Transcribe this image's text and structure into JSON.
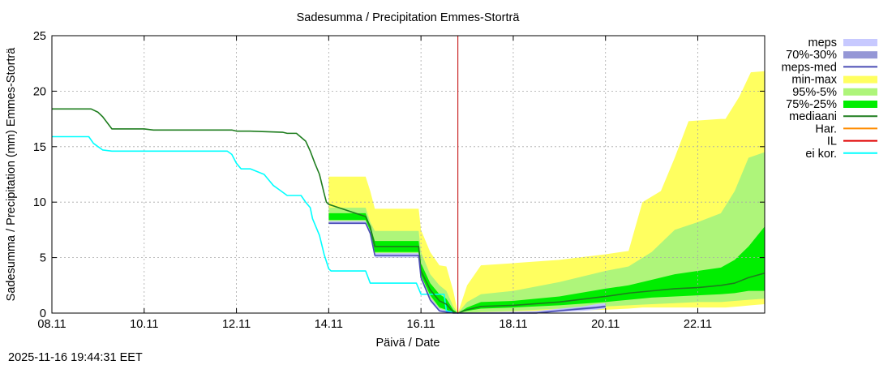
{
  "chart_data": {
    "type": "area",
    "title": "Sadesumma / Precipitation  Emmes-Storträ",
    "xlabel": "Päivä / Date",
    "ylabel": "Sadesumma / Precipitation (mm)  Emmes-Storträ",
    "timestamp": "2025-11-16 19:44:31 EET",
    "x_unit": "days since 08.11 00:00",
    "xlim": [
      0,
      15.45
    ],
    "ylim": [
      0,
      25
    ],
    "x_ticks": [
      {
        "x": 0,
        "label": "08.11"
      },
      {
        "x": 2,
        "label": "10.11"
      },
      {
        "x": 4,
        "label": "12.11"
      },
      {
        "x": 6,
        "label": "14.11"
      },
      {
        "x": 8,
        "label": "16.11"
      },
      {
        "x": 10,
        "label": "18.11"
      },
      {
        "x": 12,
        "label": "20.11"
      },
      {
        "x": 14,
        "label": "22.11"
      }
    ],
    "y_ticks": [
      0,
      5,
      10,
      15,
      20,
      25
    ],
    "grid": true,
    "now_line_x": 8.8,
    "legend": {
      "placement": "outside-right",
      "items": [
        {
          "label": "meps",
          "color": "#c7c9ff",
          "style": "band"
        },
        {
          "label": "70%-30%",
          "color": "#9597d6",
          "style": "band"
        },
        {
          "label": "meps-med",
          "color": "#4a4cb5",
          "style": "line"
        },
        {
          "label": "min-max",
          "color": "#ffff60",
          "style": "band"
        },
        {
          "label": "95%-5%",
          "color": "#aef57a",
          "style": "band"
        },
        {
          "label": "75%-25%",
          "color": "#00ee00",
          "style": "band"
        },
        {
          "label": "mediaani",
          "color": "#1e7d1e",
          "style": "line"
        },
        {
          "label": "Har.",
          "color": "#ff8c00",
          "style": "line"
        },
        {
          "label": "IL",
          "color": "#e00000",
          "style": "line"
        },
        {
          "label": "ei kor.",
          "color": "#00ffff",
          "style": "line"
        }
      ]
    },
    "series": [
      {
        "name": "min-max",
        "color": "#ffff60",
        "kind": "band",
        "segment": "past",
        "x": [
          6,
          6.8,
          6.9,
          7.0,
          7.95,
          8.0,
          8.2,
          8.4,
          8.55,
          8.7,
          8.8
        ],
        "upper": [
          12.3,
          12.3,
          11.0,
          9.4,
          9.4,
          7.5,
          5.5,
          4.3,
          4.2,
          2.0,
          0
        ],
        "lower": [
          8.0,
          8.0,
          7.0,
          5.0,
          5.0,
          3.0,
          1.0,
          0.2,
          0.1,
          0.0,
          0
        ]
      },
      {
        "name": "95%-5%",
        "color": "#aef57a",
        "kind": "band",
        "segment": "past",
        "x": [
          6,
          6.8,
          6.9,
          7.0,
          7.95,
          8.0,
          8.2,
          8.4,
          8.55,
          8.7,
          8.8
        ],
        "upper": [
          9.5,
          9.5,
          8.2,
          7.4,
          7.4,
          5.5,
          3.5,
          2.5,
          2.0,
          0.6,
          0
        ],
        "lower": [
          8.2,
          8.2,
          7.2,
          5.3,
          5.3,
          3.2,
          1.3,
          0.3,
          0.2,
          0.0,
          0
        ]
      },
      {
        "name": "75%-25%",
        "color": "#00ee00",
        "kind": "band",
        "segment": "past",
        "x": [
          6,
          6.8,
          6.9,
          7.0,
          7.95,
          8.0,
          8.2,
          8.4,
          8.55,
          8.7,
          8.8
        ],
        "upper": [
          9.0,
          9.0,
          7.8,
          6.5,
          6.5,
          4.5,
          2.7,
          1.7,
          1.3,
          0.3,
          0
        ],
        "lower": [
          8.4,
          8.4,
          7.4,
          5.5,
          5.5,
          3.4,
          1.6,
          0.5,
          0.3,
          0.0,
          0
        ]
      },
      {
        "name": "meps",
        "color": "#c7c9ff",
        "kind": "band",
        "segment": "past",
        "x": [
          6,
          6.8,
          6.9,
          7.0,
          7.95,
          8.0,
          8.2,
          8.4,
          8.55,
          8.7,
          8.8
        ],
        "upper": [
          8.3,
          8.3,
          7.4,
          5.4,
          5.4,
          3.4,
          1.4,
          0.4,
          0.2,
          0.0,
          0
        ],
        "lower": [
          8.0,
          8.0,
          7.0,
          5.0,
          5.0,
          3.0,
          1.0,
          0.1,
          0.0,
          0.0,
          0
        ]
      },
      {
        "name": "min-max",
        "color": "#ffff60",
        "kind": "band",
        "segment": "future",
        "x": [
          8.8,
          9.0,
          9.3,
          10.0,
          11.0,
          12.0,
          12.5,
          12.8,
          13.2,
          13.5,
          13.8,
          14.5,
          14.6,
          14.9,
          15.15,
          15.45
        ],
        "upper": [
          0,
          2.5,
          4.3,
          4.5,
          4.8,
          5.3,
          5.6,
          10.0,
          11.0,
          14.0,
          17.3,
          17.5,
          17.5,
          19.5,
          21.7,
          21.8
        ],
        "lower": [
          0,
          0.0,
          0.0,
          0.1,
          0.2,
          0.3,
          0.4,
          0.5,
          0.5,
          0.5,
          0.5,
          0.5,
          0.5,
          0.6,
          0.7,
          0.8
        ]
      },
      {
        "name": "95%-5%",
        "color": "#aef57a",
        "kind": "band",
        "segment": "future",
        "x": [
          8.8,
          9.0,
          9.3,
          10.0,
          11.0,
          12.0,
          12.5,
          13.0,
          13.5,
          14.0,
          14.5,
          14.8,
          15.1,
          15.45
        ],
        "upper": [
          0,
          1.0,
          1.7,
          2.0,
          2.8,
          3.8,
          4.2,
          5.5,
          7.5,
          8.2,
          9.0,
          11.0,
          14.0,
          14.5
        ],
        "lower": [
          0,
          0.0,
          0.1,
          0.2,
          0.4,
          0.6,
          0.7,
          0.8,
          0.9,
          1.0,
          1.0,
          1.1,
          1.2,
          1.3
        ]
      },
      {
        "name": "75%-25%",
        "color": "#00ee00",
        "kind": "band",
        "segment": "future",
        "x": [
          8.8,
          9.0,
          9.3,
          10.0,
          11.0,
          12.0,
          12.5,
          13.0,
          13.5,
          14.0,
          14.5,
          14.8,
          15.1,
          15.45
        ],
        "upper": [
          0,
          0.5,
          1.0,
          1.1,
          1.5,
          2.2,
          2.5,
          3.0,
          3.5,
          3.8,
          4.1,
          4.8,
          6.0,
          7.8
        ],
        "lower": [
          0,
          0.2,
          0.4,
          0.5,
          0.7,
          1.0,
          1.2,
          1.4,
          1.5,
          1.6,
          1.7,
          1.8,
          2.0,
          2.0
        ]
      },
      {
        "name": "meps",
        "color": "#c7c9ff",
        "kind": "band",
        "segment": "future",
        "x": [
          8.8,
          9.5,
          10.5,
          11.0,
          11.5,
          11.8,
          12.0
        ],
        "upper": [
          0,
          0.1,
          0.2,
          0.4,
          0.6,
          0.8,
          0.9
        ],
        "lower": [
          0,
          0.0,
          0.0,
          0.1,
          0.2,
          0.3,
          0.4
        ]
      },
      {
        "name": "70%-30%",
        "color": "#9597d6",
        "kind": "band",
        "segment": "future",
        "x": [
          8.8,
          9.5,
          10.5,
          11.0,
          11.5,
          11.8,
          12.0
        ],
        "upper": [
          0,
          0.0,
          0.1,
          0.3,
          0.5,
          0.6,
          0.7
        ],
        "lower": [
          0,
          0.0,
          0.0,
          0.2,
          0.3,
          0.4,
          0.5
        ]
      },
      {
        "name": "ei kor.",
        "color": "#00ffff",
        "kind": "line",
        "x": [
          0,
          0.8,
          0.9,
          1.0,
          1.1,
          1.3,
          2.0,
          3.0,
          3.8,
          3.9,
          4.0,
          4.1,
          4.3,
          4.6,
          4.7,
          4.8,
          4.9,
          5.1,
          5.15,
          5.4,
          5.5,
          5.6,
          5.65,
          5.8,
          5.9,
          6.0,
          6.05,
          6.8,
          6.9,
          7.0,
          7.9,
          8.0,
          8.15,
          8.3,
          8.5,
          8.55,
          8.8
        ],
        "y": [
          15.9,
          15.9,
          15.3,
          15.0,
          14.7,
          14.6,
          14.6,
          14.6,
          14.6,
          14.3,
          13.5,
          13.0,
          13.0,
          12.5,
          12.0,
          11.5,
          11.2,
          10.6,
          10.6,
          10.6,
          10.0,
          9.5,
          8.5,
          7.0,
          5.3,
          4.0,
          3.8,
          3.8,
          2.7,
          2.7,
          2.7,
          1.7,
          1.7,
          1.7,
          1.7,
          0.2,
          0
        ]
      },
      {
        "name": "mediaani",
        "color": "#1e7d1e",
        "kind": "line",
        "x": [
          0,
          0.85,
          1.0,
          1.1,
          1.3,
          2.0,
          2.2,
          3.9,
          4.0,
          4.1,
          4.3,
          5.0,
          5.1,
          5.3,
          5.5,
          5.6,
          5.7,
          5.8,
          5.9,
          5.95,
          6.0,
          6.8,
          6.9,
          7.0,
          7.95,
          8.0,
          8.2,
          8.4,
          8.55,
          8.7,
          8.8,
          9.0,
          9.3,
          10.0,
          11.0,
          12.0,
          12.5,
          13.0,
          13.5,
          14.0,
          14.5,
          14.8,
          15.1,
          15.45
        ],
        "y": [
          18.4,
          18.4,
          18.1,
          17.7,
          16.6,
          16.6,
          16.5,
          16.5,
          16.4,
          16.4,
          16.4,
          16.3,
          16.2,
          16.2,
          15.5,
          14.6,
          13.5,
          12.5,
          10.8,
          10.0,
          9.8,
          8.7,
          7.8,
          6.0,
          6.0,
          3.8,
          2.1,
          1.1,
          0.8,
          0.1,
          0,
          0.3,
          0.6,
          0.7,
          1.0,
          1.5,
          1.8,
          2.0,
          2.2,
          2.3,
          2.5,
          2.7,
          3.2,
          3.6
        ]
      },
      {
        "name": "meps-med",
        "color": "#4a4cb5",
        "kind": "line",
        "x": [
          6,
          6.8,
          6.9,
          7.0,
          7.95,
          8.0,
          8.2,
          8.4,
          8.55,
          8.7,
          8.8,
          9.5,
          10.5,
          11.0,
          11.5,
          11.8,
          12.0
        ],
        "y": [
          8.1,
          8.1,
          7.2,
          5.2,
          5.2,
          3.2,
          1.2,
          0.2,
          0.1,
          0.0,
          0,
          0.0,
          0.0,
          0.2,
          0.4,
          0.5,
          0.6
        ]
      }
    ]
  }
}
